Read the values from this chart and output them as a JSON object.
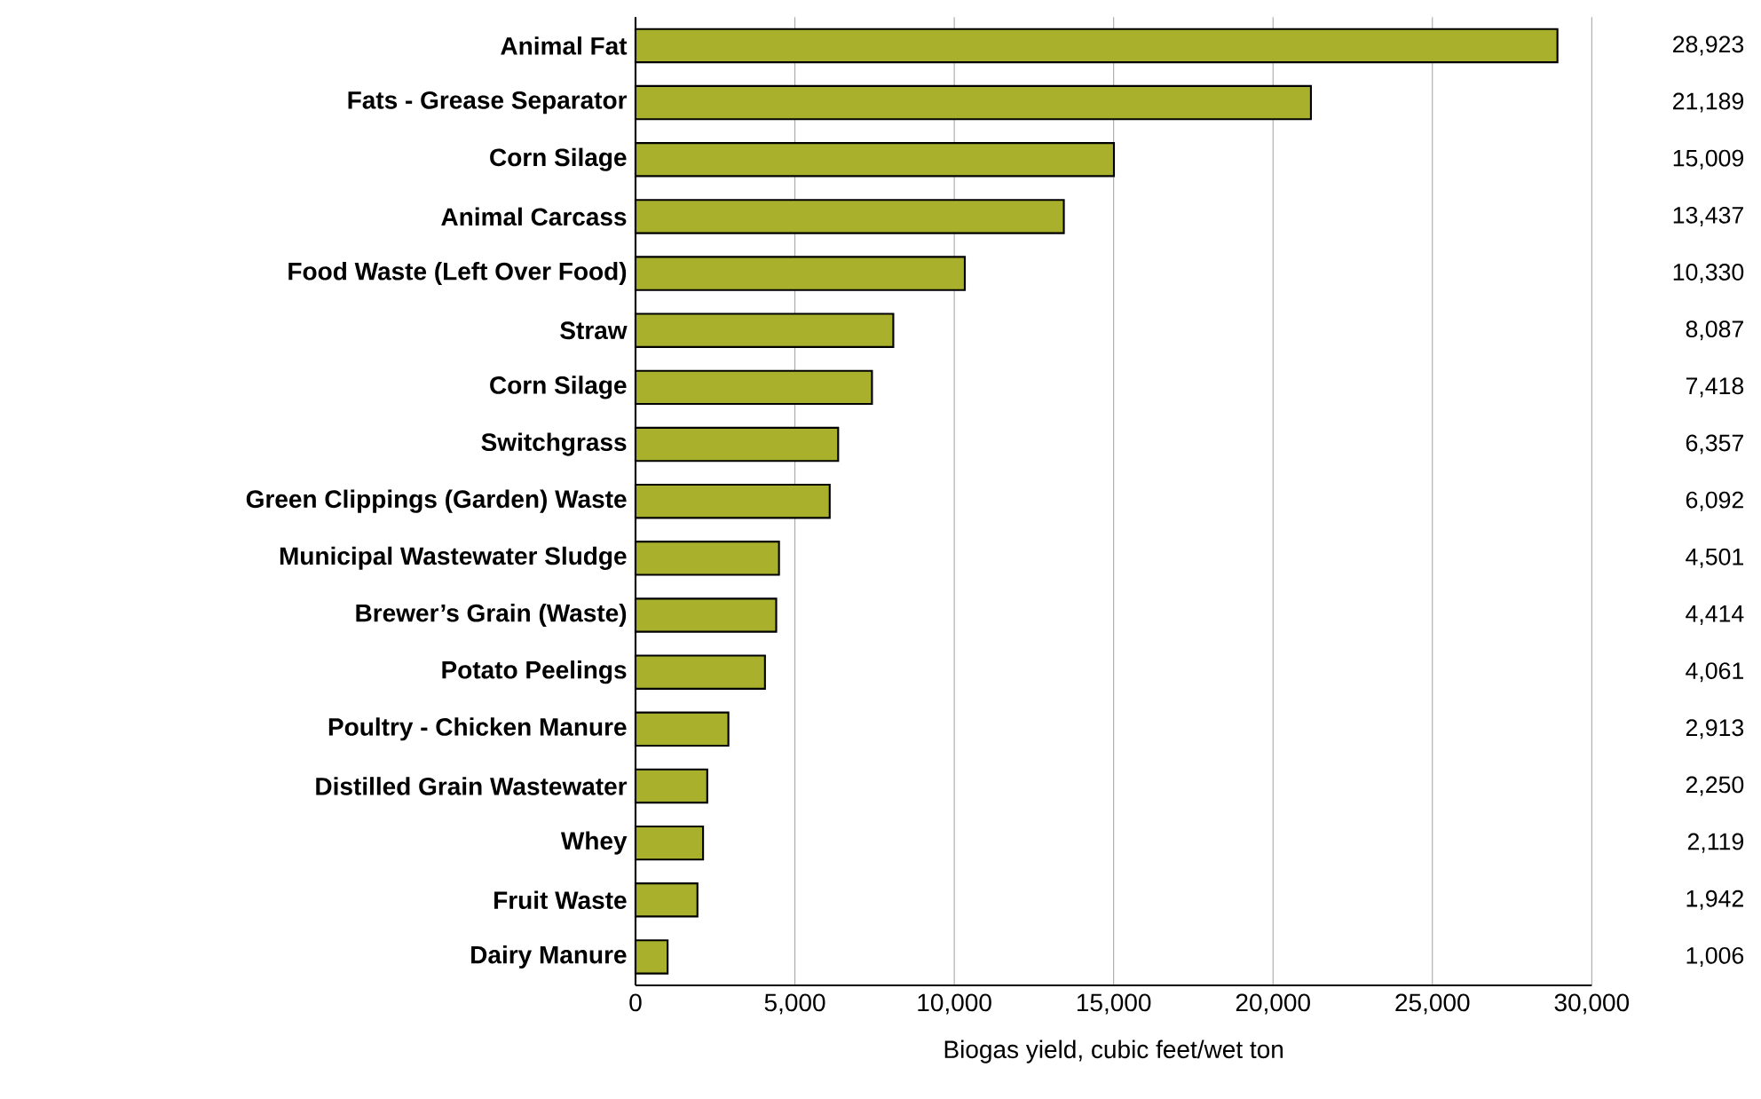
{
  "chart_data": {
    "type": "bar",
    "orientation": "horizontal",
    "categories": [
      "Animal Fat",
      "Fats - Grease Separator",
      "Corn Silage",
      "Animal Carcass",
      "Food Waste (Left Over Food)",
      "Straw",
      "Corn Silage",
      "Switchgrass",
      "Green Clippings (Garden) Waste",
      "Municipal Wastewater Sludge",
      "Brewer’s Grain (Waste)",
      "Potato Peelings",
      "Poultry - Chicken Manure",
      "Distilled Grain Wastewater",
      "Whey",
      "Fruit Waste",
      "Dairy Manure"
    ],
    "values": [
      28923,
      21189,
      15009,
      13437,
      10330,
      8087,
      7418,
      6357,
      6092,
      4501,
      4414,
      4061,
      2913,
      2250,
      2119,
      1942,
      1006
    ],
    "value_labels": [
      "28,923",
      "21,189",
      "15,009",
      "13,437",
      "10,330",
      "8,087",
      "7,418",
      "6,357",
      "6,092",
      "4,501",
      "4,414",
      "4,061",
      "2,913",
      "2,250",
      "2,119",
      "1,942",
      "1,006"
    ],
    "color": "#a9b02c",
    "xlabel": "Biogas yield, cubic feet/wet ton",
    "xlim": [
      0,
      30000
    ],
    "xticks": [
      {
        "value": 0,
        "label": "0"
      },
      {
        "value": 5000,
        "label": "5,000"
      },
      {
        "value": 10000,
        "label": "10,000"
      },
      {
        "value": 15000,
        "label": "15,000"
      },
      {
        "value": 20000,
        "label": "20,000"
      },
      {
        "value": 25000,
        "label": "25,000"
      },
      {
        "value": 30000,
        "label": "30,000"
      }
    ],
    "grid": "x"
  }
}
